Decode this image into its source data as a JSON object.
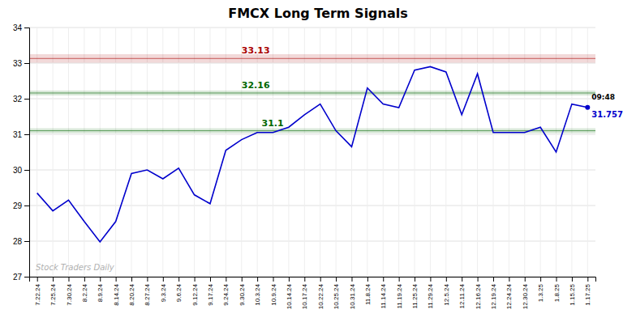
{
  "chart_data": {
    "type": "line",
    "title": "FMCX Long Term Signals",
    "categories": [
      "7.22.24",
      "7.25.24",
      "7.30.24",
      "8.2.24",
      "8.9.24",
      "8.14.24",
      "8.20.24",
      "8.27.24",
      "9.3.24",
      "9.6.24",
      "9.12.24",
      "9.17.24",
      "9.24.24",
      "9.30.24",
      "10.3.24",
      "10.9.24",
      "10.14.24",
      "10.17.24",
      "10.22.24",
      "10.25.24",
      "10.31.24",
      "11.8.24",
      "11.14.24",
      "11.19.24",
      "11.25.24",
      "11.29.24",
      "12.5.24",
      "12.11.24",
      "12.16.24",
      "12.19.24",
      "12.24.24",
      "12.30.24",
      "1.3.25",
      "1.8.25",
      "1.15.25",
      "1.17.25"
    ],
    "values": [
      29.35,
      28.85,
      29.15,
      28.55,
      27.98,
      28.55,
      29.9,
      30.0,
      29.75,
      30.05,
      29.3,
      29.05,
      30.55,
      30.85,
      31.05,
      31.05,
      31.2,
      31.55,
      31.85,
      31.1,
      30.65,
      32.3,
      31.85,
      31.75,
      32.8,
      32.9,
      32.75,
      31.55,
      32.7,
      31.05,
      31.05,
      31.05,
      31.2,
      30.5,
      31.85,
      31.757
    ],
    "color": "#0000cc",
    "ylim": [
      27,
      34
    ],
    "yticks": [
      27,
      28,
      29,
      30,
      31,
      32,
      33,
      34
    ],
    "grid": true,
    "reference_lines": [
      {
        "value": 33.13,
        "label": "33.13",
        "color": "#aa0000"
      },
      {
        "value": 32.16,
        "label": "32.16",
        "color": "#006600"
      },
      {
        "value": 31.1,
        "label": "31.1",
        "color": "#006600"
      }
    ],
    "annotations": [
      {
        "text": "09:48"
      },
      {
        "text": "31.757",
        "color": "#0000cc"
      },
      {
        "text": "Stock Traders Daily",
        "color": "#b0b0b0"
      }
    ]
  }
}
